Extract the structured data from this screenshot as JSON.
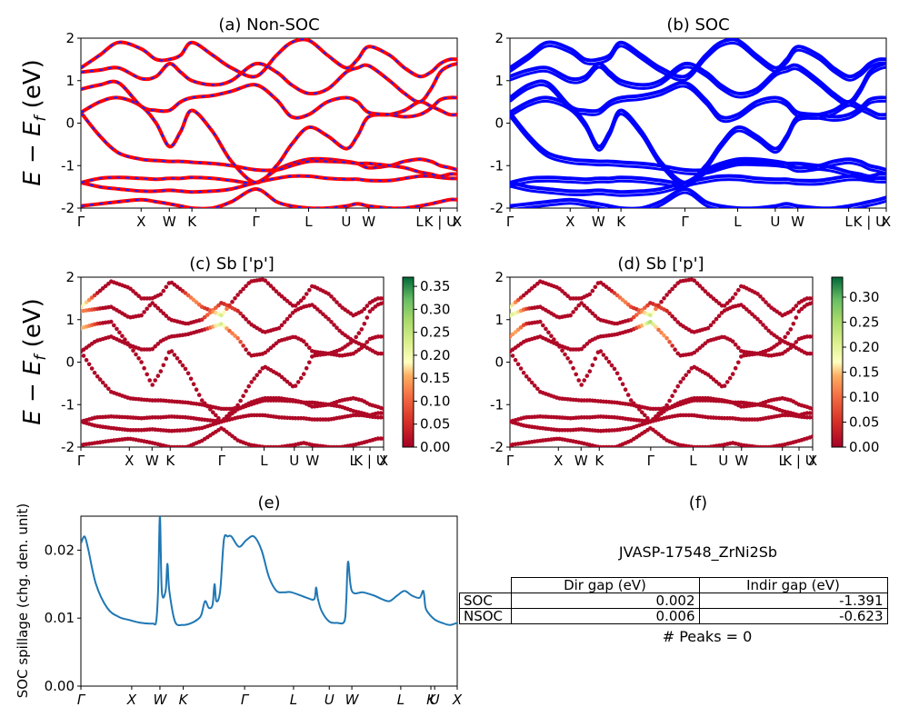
{
  "panels": {
    "a": {
      "title": "(a) Non-SOC"
    },
    "b": {
      "title": "(b) SOC"
    },
    "c": {
      "title": "(c)  Sb ['p']"
    },
    "d": {
      "title": "(d) Sb ['p']"
    },
    "e": {
      "title": "(e)"
    },
    "f": {
      "title": "(f)"
    }
  },
  "band_ylabel": "E − E_f (eV)",
  "kpath_labels": [
    "Γ",
    "X",
    "W",
    "K",
    "Γ",
    "L",
    "U",
    "W",
    "L",
    "K | U",
    "X"
  ],
  "kpath_positions": [
    0,
    0.16,
    0.235,
    0.295,
    0.465,
    0.605,
    0.705,
    0.765,
    0.9,
    0.955,
    1.0
  ],
  "colors": {
    "nonsoc_main": "#ff0000",
    "nonsoc_dash": "#1f1fff",
    "soc": "#0000ff",
    "spillage": "#1f77b4"
  },
  "chart_data": [
    {
      "id": "a",
      "type": "line",
      "title": "(a) Non-SOC",
      "ylabel": "E − E_f (eV)",
      "ylim": [
        -2,
        2
      ],
      "yticks": [
        -2,
        -1,
        0,
        1,
        2
      ],
      "x": [
        0,
        0.05,
        0.1,
        0.16,
        0.2,
        0.235,
        0.265,
        0.295,
        0.35,
        0.4,
        0.465,
        0.52,
        0.56,
        0.605,
        0.655,
        0.705,
        0.735,
        0.765,
        0.82,
        0.86,
        0.9,
        0.93,
        0.955,
        0.98,
        1.0
      ],
      "series": [
        {
          "values": [
            -1.95,
            -1.9,
            -1.85,
            -1.8,
            -1.85,
            -1.9,
            -1.95,
            -2.0,
            -2.0,
            -1.85,
            -1.55,
            -1.85,
            -1.95,
            -2.0,
            -2.0,
            -1.95,
            -1.9,
            -1.95,
            -2.0,
            -2.0,
            -1.95,
            -1.9,
            -1.85,
            -1.8,
            -1.8
          ]
        },
        {
          "values": [
            -1.4,
            -1.5,
            -1.55,
            -1.6,
            -1.6,
            -1.58,
            -1.6,
            -1.62,
            -1.6,
            -1.55,
            -1.4,
            -1.3,
            -1.25,
            -1.25,
            -1.3,
            -1.32,
            -1.32,
            -1.35,
            -1.35,
            -1.3,
            -1.25,
            -1.25,
            -1.28,
            -1.3,
            -1.3
          ]
        },
        {
          "values": [
            -1.4,
            -1.3,
            -1.28,
            -1.3,
            -1.32,
            -1.3,
            -1.3,
            -1.28,
            -1.3,
            -1.35,
            -1.4,
            -1.1,
            -0.95,
            -0.85,
            -0.85,
            -0.9,
            -0.95,
            -1.05,
            -1.0,
            -0.9,
            -0.85,
            -0.9,
            -1.0,
            -1.05,
            -1.1
          ]
        },
        {
          "values": [
            0.25,
            -0.3,
            -0.7,
            -0.85,
            -0.88,
            -0.9,
            -0.9,
            -0.92,
            -0.95,
            -1.0,
            -1.1,
            -1.1,
            -1.0,
            -0.9,
            -0.9,
            -0.92,
            -0.95,
            -0.95,
            -1.0,
            -1.05,
            -1.15,
            -1.2,
            -1.25,
            -1.2,
            -1.2
          ]
        },
        {
          "values": [
            0.25,
            0.5,
            0.6,
            0.4,
            0.0,
            -0.55,
            -0.2,
            0.3,
            -0.2,
            -0.9,
            -1.4,
            -1.0,
            -0.5,
            -0.1,
            -0.3,
            -0.6,
            -0.3,
            0.15,
            0.2,
            0.3,
            0.5,
            0.4,
            0.3,
            0.2,
            0.2
          ]
        },
        {
          "values": [
            0.8,
            0.9,
            0.95,
            0.4,
            0.3,
            0.3,
            0.5,
            0.6,
            0.65,
            0.75,
            0.9,
            0.55,
            0.15,
            0.2,
            0.5,
            0.6,
            0.5,
            0.25,
            0.2,
            0.15,
            0.2,
            0.35,
            0.55,
            0.6,
            0.6
          ]
        },
        {
          "values": [
            1.2,
            1.25,
            1.3,
            1.05,
            1.1,
            1.4,
            1.2,
            1.0,
            0.9,
            1.0,
            1.4,
            1.2,
            0.9,
            0.7,
            0.8,
            1.2,
            1.3,
            1.35,
            1.0,
            0.7,
            0.5,
            0.8,
            1.2,
            1.35,
            1.4
          ]
        },
        {
          "values": [
            1.3,
            1.6,
            1.9,
            1.75,
            1.5,
            1.5,
            1.6,
            1.9,
            1.6,
            1.3,
            1.1,
            1.6,
            1.9,
            1.95,
            1.6,
            1.3,
            1.5,
            1.8,
            1.6,
            1.3,
            1.1,
            1.2,
            1.4,
            1.5,
            1.5
          ]
        }
      ]
    },
    {
      "id": "b",
      "type": "line",
      "title": "(b) SOC",
      "ylim": [
        -2,
        2
      ],
      "yticks": [
        -2,
        -1,
        0,
        1,
        2
      ],
      "x": [
        0,
        0.05,
        0.1,
        0.16,
        0.2,
        0.235,
        0.265,
        0.295,
        0.35,
        0.4,
        0.465,
        0.52,
        0.56,
        0.605,
        0.655,
        0.705,
        0.735,
        0.765,
        0.82,
        0.86,
        0.9,
        0.93,
        0.955,
        0.98,
        1.0
      ],
      "series": [
        {
          "values": [
            -1.95,
            -1.9,
            -1.85,
            -1.8,
            -1.85,
            -1.9,
            -1.95,
            -2.0,
            -2.0,
            -1.85,
            -1.55,
            -1.85,
            -1.95,
            -2.0,
            -2.0,
            -1.95,
            -1.9,
            -1.95,
            -2.0,
            -2.0,
            -1.95,
            -1.9,
            -1.85,
            -1.8,
            -1.75
          ]
        },
        {
          "values": [
            -1.4,
            -1.5,
            -1.55,
            -1.6,
            -1.6,
            -1.58,
            -1.6,
            -1.62,
            -1.6,
            -1.55,
            -1.4,
            -1.3,
            -1.25,
            -1.25,
            -1.3,
            -1.32,
            -1.32,
            -1.35,
            -1.35,
            -1.3,
            -1.25,
            -1.25,
            -1.28,
            -1.3,
            -1.3
          ]
        },
        {
          "values": [
            -1.4,
            -1.3,
            -1.28,
            -1.3,
            -1.32,
            -1.3,
            -1.3,
            -1.28,
            -1.3,
            -1.35,
            -1.4,
            -1.1,
            -0.95,
            -0.85,
            -0.85,
            -0.9,
            -0.95,
            -1.05,
            -1.0,
            -0.9,
            -0.85,
            -0.9,
            -1.0,
            -1.05,
            -1.1
          ]
        },
        {
          "values": [
            0.25,
            -0.3,
            -0.7,
            -0.85,
            -0.88,
            -0.9,
            -0.9,
            -0.92,
            -0.95,
            -1.0,
            -1.1,
            -1.1,
            -1.0,
            -0.9,
            -0.9,
            -0.92,
            -0.95,
            -0.95,
            -1.0,
            -1.05,
            -1.15,
            -1.2,
            -1.25,
            -1.2,
            -1.2
          ]
        },
        {
          "values": [
            0.25,
            0.5,
            0.6,
            0.4,
            0.0,
            -0.55,
            -0.2,
            0.3,
            -0.2,
            -0.9,
            -1.4,
            -1.0,
            -0.5,
            -0.1,
            -0.3,
            -0.6,
            -0.3,
            0.15,
            0.2,
            0.3,
            0.5,
            0.4,
            0.3,
            0.2,
            0.2
          ]
        },
        {
          "values": [
            0.6,
            0.9,
            0.95,
            0.4,
            0.3,
            0.3,
            0.5,
            0.6,
            0.65,
            0.75,
            0.95,
            0.55,
            0.15,
            0.2,
            0.5,
            0.6,
            0.5,
            0.25,
            0.2,
            0.15,
            0.2,
            0.35,
            0.55,
            0.6,
            0.6
          ]
        },
        {
          "values": [
            1.1,
            1.25,
            1.3,
            1.05,
            1.1,
            1.4,
            1.2,
            1.0,
            0.9,
            1.0,
            1.4,
            1.2,
            0.9,
            0.7,
            0.8,
            1.2,
            1.3,
            1.35,
            1.0,
            0.7,
            0.5,
            0.8,
            1.2,
            1.35,
            1.4
          ]
        },
        {
          "values": [
            1.3,
            1.6,
            1.9,
            1.75,
            1.5,
            1.5,
            1.6,
            1.9,
            1.6,
            1.3,
            1.1,
            1.6,
            1.9,
            1.95,
            1.6,
            1.3,
            1.5,
            1.8,
            1.6,
            1.3,
            1.1,
            1.2,
            1.4,
            1.5,
            1.5
          ]
        }
      ]
    },
    {
      "id": "c",
      "type": "scatter",
      "title": "(c)  Sb ['p']",
      "ylabel": "E − E_f (eV)",
      "ylim": [
        -2,
        2
      ],
      "yticks": [
        -2,
        -1,
        0,
        1,
        2
      ],
      "colorbar_range": [
        0,
        0.37
      ],
      "colorbar_ticks": [
        "0.00",
        "0.05",
        "0.10",
        "0.15",
        "0.20",
        "0.25",
        "0.30",
        "0.35"
      ],
      "highlight": [
        {
          "x": 0.465,
          "y": 1.0,
          "weight": 0.3
        },
        {
          "x": 0.4,
          "y": 1.6,
          "weight": 0.25
        },
        {
          "x": 0.0,
          "y": 1.4,
          "weight": 0.22
        },
        {
          "x": 0.0,
          "y": 0.9,
          "weight": 0.2
        },
        {
          "x": 0.5,
          "y": 0.6,
          "weight": 0.15
        }
      ]
    },
    {
      "id": "d",
      "type": "scatter",
      "title": "(d) Sb ['p']",
      "ylim": [
        -2,
        2
      ],
      "yticks": [
        -2,
        -1,
        0,
        1,
        2
      ],
      "colorbar_range": [
        0,
        0.34
      ],
      "colorbar_ticks": [
        "0.00",
        "0.05",
        "0.10",
        "0.15",
        "0.20",
        "0.25",
        "0.30"
      ],
      "highlight": [
        {
          "x": 0.465,
          "y": 1.0,
          "weight": 0.28
        },
        {
          "x": 0.4,
          "y": 1.6,
          "weight": 0.22
        },
        {
          "x": 0.0,
          "y": 1.2,
          "weight": 0.25
        },
        {
          "x": 0.0,
          "y": 0.8,
          "weight": 0.2
        },
        {
          "x": 0.5,
          "y": 0.6,
          "weight": 0.15
        }
      ]
    },
    {
      "id": "e",
      "type": "line",
      "title": "(e)",
      "ylabel": "SOC spillage (chg. den. unit)",
      "ylim": [
        0,
        0.025
      ],
      "yticks": [
        "0.00",
        "0.01",
        "0.02"
      ],
      "xtick_labels": [
        "Γ",
        "X",
        "W",
        "K",
        "Γ",
        "L",
        "U",
        "W",
        "L",
        "K",
        "U",
        "X"
      ],
      "xtick_positions": [
        0,
        0.135,
        0.21,
        0.272,
        0.435,
        0.565,
        0.66,
        0.72,
        0.85,
        0.93,
        0.94,
        1.0
      ],
      "x": [
        0,
        0.01,
        0.02,
        0.04,
        0.07,
        0.1,
        0.13,
        0.16,
        0.19,
        0.2,
        0.205,
        0.21,
        0.215,
        0.225,
        0.23,
        0.235,
        0.25,
        0.27,
        0.29,
        0.31,
        0.32,
        0.33,
        0.34,
        0.35,
        0.355,
        0.36,
        0.37,
        0.38,
        0.39,
        0.4,
        0.42,
        0.44,
        0.46,
        0.48,
        0.5,
        0.52,
        0.54,
        0.56,
        0.6,
        0.62,
        0.625,
        0.63,
        0.64,
        0.66,
        0.68,
        0.7,
        0.705,
        0.71,
        0.72,
        0.75,
        0.78,
        0.8,
        0.82,
        0.84,
        0.86,
        0.88,
        0.9,
        0.91,
        0.915,
        0.92,
        0.94,
        0.96,
        0.98,
        1.0
      ],
      "values": [
        0.021,
        0.022,
        0.02,
        0.015,
        0.0115,
        0.0102,
        0.0097,
        0.0093,
        0.0092,
        0.0095,
        0.014,
        0.025,
        0.014,
        0.014,
        0.018,
        0.014,
        0.0095,
        0.009,
        0.0092,
        0.0098,
        0.0105,
        0.0125,
        0.0115,
        0.012,
        0.015,
        0.0125,
        0.014,
        0.0215,
        0.022,
        0.022,
        0.0205,
        0.0215,
        0.022,
        0.02,
        0.016,
        0.014,
        0.0138,
        0.0138,
        0.013,
        0.0128,
        0.0145,
        0.0128,
        0.011,
        0.0095,
        0.0093,
        0.0095,
        0.0125,
        0.0183,
        0.014,
        0.0138,
        0.0133,
        0.0128,
        0.0125,
        0.0133,
        0.014,
        0.0133,
        0.013,
        0.014,
        0.0118,
        0.011,
        0.0098,
        0.0093,
        0.009,
        0.0093
      ]
    }
  ],
  "table": {
    "title": "JVASP-17548_ZrNi2Sb",
    "headers": [
      "Dir gap (eV)",
      "Indir gap (eV)"
    ],
    "rows": [
      {
        "label": "SOC",
        "dir": "0.002",
        "indir": "-1.391"
      },
      {
        "label": "NSOC",
        "dir": "0.006",
        "indir": "-0.623"
      }
    ],
    "peaks": "# Peaks = 0"
  }
}
